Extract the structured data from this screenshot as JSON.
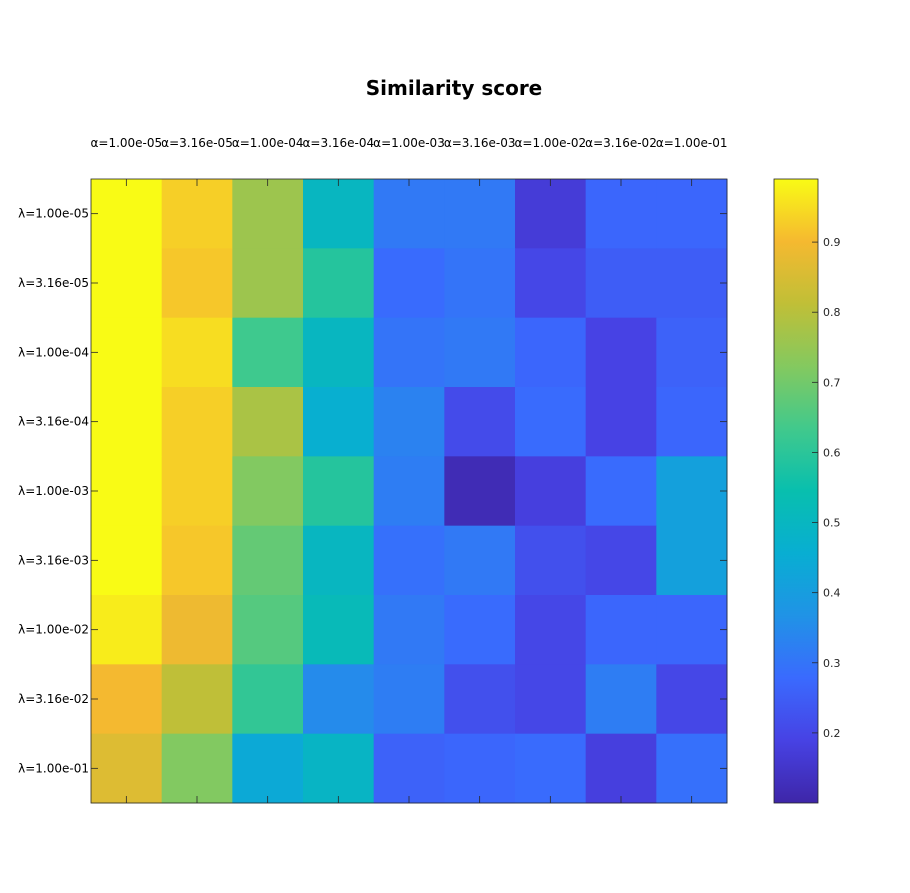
{
  "chart_data": {
    "type": "heatmap",
    "title": "Similarity score",
    "x_labels": [
      "α=1.00e-05",
      "α=3.16e-05",
      "α=1.00e-04",
      "α=3.16e-04",
      "α=1.00e-03",
      "α=3.16e-03",
      "α=1.00e-02",
      "α=3.16e-02",
      "α=1.00e-01"
    ],
    "y_labels": [
      "λ=1.00e-05",
      "λ=3.16e-05",
      "λ=1.00e-04",
      "λ=3.16e-04",
      "λ=1.00e-03",
      "λ=3.16e-03",
      "λ=1.00e-02",
      "λ=3.16e-02",
      "λ=1.00e-01"
    ],
    "values": [
      [
        0.99,
        0.93,
        0.76,
        0.5,
        0.31,
        0.31,
        0.17,
        0.27,
        0.27
      ],
      [
        0.99,
        0.92,
        0.76,
        0.59,
        0.28,
        0.3,
        0.2,
        0.25,
        0.25
      ],
      [
        0.99,
        0.95,
        0.63,
        0.5,
        0.3,
        0.31,
        0.27,
        0.19,
        0.26
      ],
      [
        0.99,
        0.93,
        0.78,
        0.46,
        0.33,
        0.21,
        0.28,
        0.19,
        0.27
      ],
      [
        0.99,
        0.93,
        0.72,
        0.59,
        0.32,
        0.12,
        0.18,
        0.28,
        0.41
      ],
      [
        0.99,
        0.92,
        0.68,
        0.5,
        0.29,
        0.31,
        0.22,
        0.2,
        0.41
      ],
      [
        0.97,
        0.89,
        0.66,
        0.52,
        0.31,
        0.28,
        0.2,
        0.27,
        0.27
      ],
      [
        0.9,
        0.81,
        0.61,
        0.35,
        0.32,
        0.22,
        0.2,
        0.32,
        0.2
      ],
      [
        0.86,
        0.72,
        0.44,
        0.49,
        0.26,
        0.27,
        0.28,
        0.18,
        0.29
      ]
    ],
    "color_scale": "parula",
    "clim": [
      0.1,
      0.99
    ],
    "colorbar_ticks": [
      0.2,
      0.3,
      0.4,
      0.5,
      0.6,
      0.7,
      0.8,
      0.9
    ],
    "colormap_stops": [
      "#3e26a8",
      "#4742e4",
      "#3a6afe",
      "#2093e6",
      "#08aed2",
      "#08bfae",
      "#41c98c",
      "#84c95f",
      "#c0bf37",
      "#f5b930",
      "#f9fb15"
    ]
  }
}
